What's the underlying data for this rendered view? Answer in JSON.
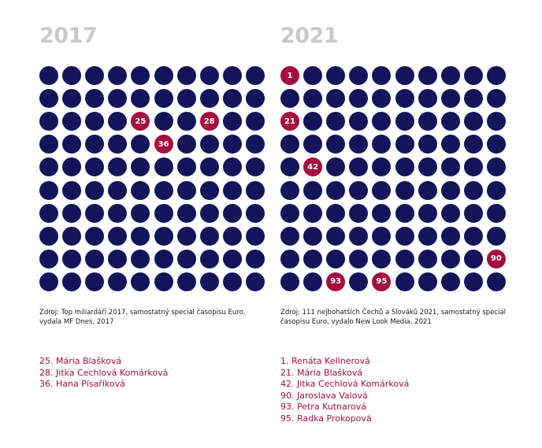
{
  "chart_data": [
    {
      "type": "waffle",
      "title": "2017",
      "grid": {
        "rows": 10,
        "columns": 10,
        "total": 100
      },
      "colors": {
        "base": "#13145a",
        "highlight": "#a50e3c"
      },
      "highlighted_ranks": [
        25,
        28,
        36
      ],
      "source": "Zdroj: Top miliardáři 2017, samostatný speciál časopisu Euro, vydala MF Dnes, 2017",
      "legend": [
        "25. Mária Blašková",
        "28. Jitka Cechlová Komárková",
        "36. Hana Písaříková"
      ]
    },
    {
      "type": "waffle",
      "title": "2021",
      "grid": {
        "rows": 10,
        "columns": 10,
        "total": 100
      },
      "colors": {
        "base": "#13145a",
        "highlight": "#a50e3c"
      },
      "highlighted_ranks": [
        1,
        21,
        42,
        90,
        93,
        95
      ],
      "source": "Zdroj: 111 nejbohatších Čechů a Slováků 2021, samostatný speciál časopisu Euro, vydalo New Look Media, 2021",
      "legend": [
        "1. Renáta Kellnerová",
        "21. Mária Blašková",
        "42. Jitka Cechlová Komárková",
        "90. Jaroslava Valová",
        "93. Petra Kutnarová",
        "95. Radka Prokopová"
      ]
    }
  ]
}
